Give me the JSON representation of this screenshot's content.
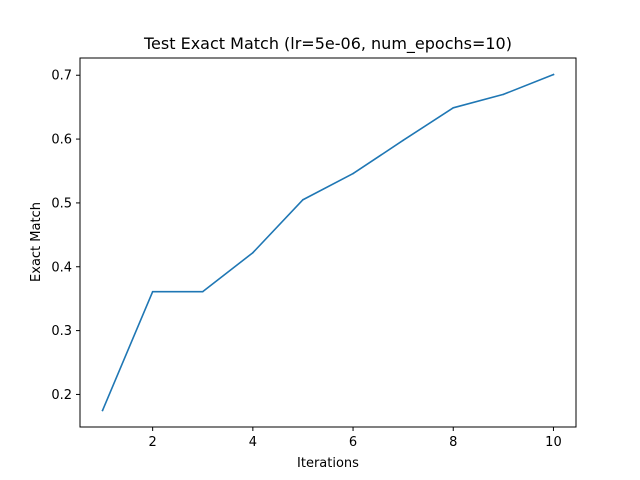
{
  "chart_data": {
    "type": "line",
    "title": "Test Exact Match (lr=5e-06, num_epochs=10)",
    "xlabel": "Iterations",
    "ylabel": "Exact Match",
    "x": [
      1,
      2,
      3,
      4,
      5,
      6,
      7,
      8,
      9,
      10
    ],
    "series": [
      {
        "color": "#1f77b4",
        "values": [
          0.175,
          0.361,
          0.361,
          0.422,
          0.505,
          0.546,
          0.598,
          0.649,
          0.67,
          0.701
        ]
      }
    ],
    "xlim": [
      0.55,
      10.45
    ],
    "ylim": [
      0.149,
      0.727
    ],
    "xticks": [
      2,
      4,
      6,
      8,
      10
    ],
    "xtick_labels": [
      "2",
      "4",
      "6",
      "8",
      "10"
    ],
    "yticks": [
      0.2,
      0.3,
      0.4,
      0.5,
      0.6,
      0.7
    ],
    "ytick_labels": [
      "0.2",
      "0.3",
      "0.4",
      "0.5",
      "0.6",
      "0.7"
    ],
    "grid": false,
    "legend": "none"
  }
}
